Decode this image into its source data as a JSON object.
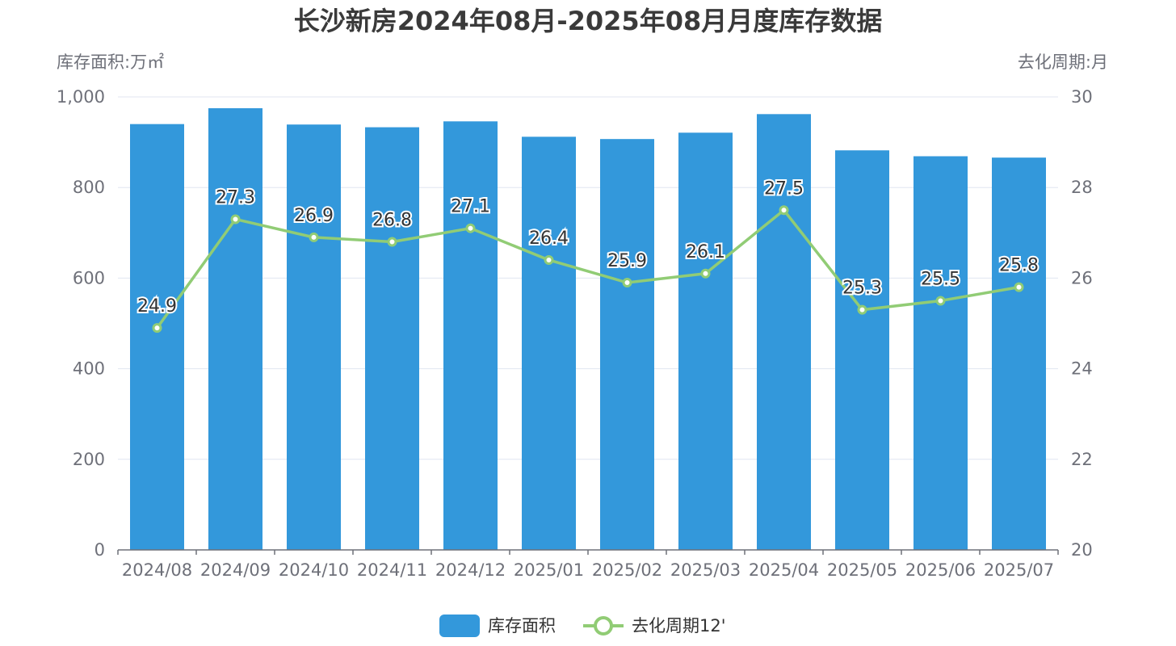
{
  "chart_data": {
    "type": "bar",
    "title": "长沙新房2024年08月-2025年08月月度库存数据",
    "ylabel_left": "库存面积:万㎡",
    "ylabel_right": "去化周期:月",
    "categories": [
      "2024/08",
      "2024/09",
      "2024/10",
      "2024/11",
      "2024/12",
      "2025/01",
      "2025/02",
      "2025/03",
      "2025/04",
      "2025/05",
      "2025/06",
      "2025/07"
    ],
    "left_ticks": [
      "0",
      "200",
      "400",
      "600",
      "800",
      "1,000"
    ],
    "right_ticks": [
      "20",
      "22",
      "24",
      "26",
      "28",
      "30"
    ],
    "ylim_left": [
      0,
      1000
    ],
    "ylim_right": [
      20,
      30
    ],
    "grid": true,
    "legend_position": "bottom",
    "series": [
      {
        "name": "库存面积",
        "type": "bar",
        "axis": "left",
        "color": "#3398db",
        "values": [
          940,
          975,
          939,
          933,
          946,
          912,
          907,
          921,
          962,
          882,
          869,
          866
        ]
      },
      {
        "name": "去化周期12'",
        "type": "line",
        "axis": "right",
        "color": "#91cc75",
        "values": [
          24.9,
          27.3,
          26.9,
          26.8,
          27.1,
          26.4,
          25.9,
          26.1,
          27.5,
          25.3,
          25.5,
          25.8
        ],
        "labels": [
          "24.9",
          "27.3",
          "26.9",
          "26.8",
          "27.1",
          "26.4",
          "25.9",
          "26.1",
          "27.5",
          "25.3",
          "25.5",
          "25.8"
        ]
      }
    ]
  }
}
